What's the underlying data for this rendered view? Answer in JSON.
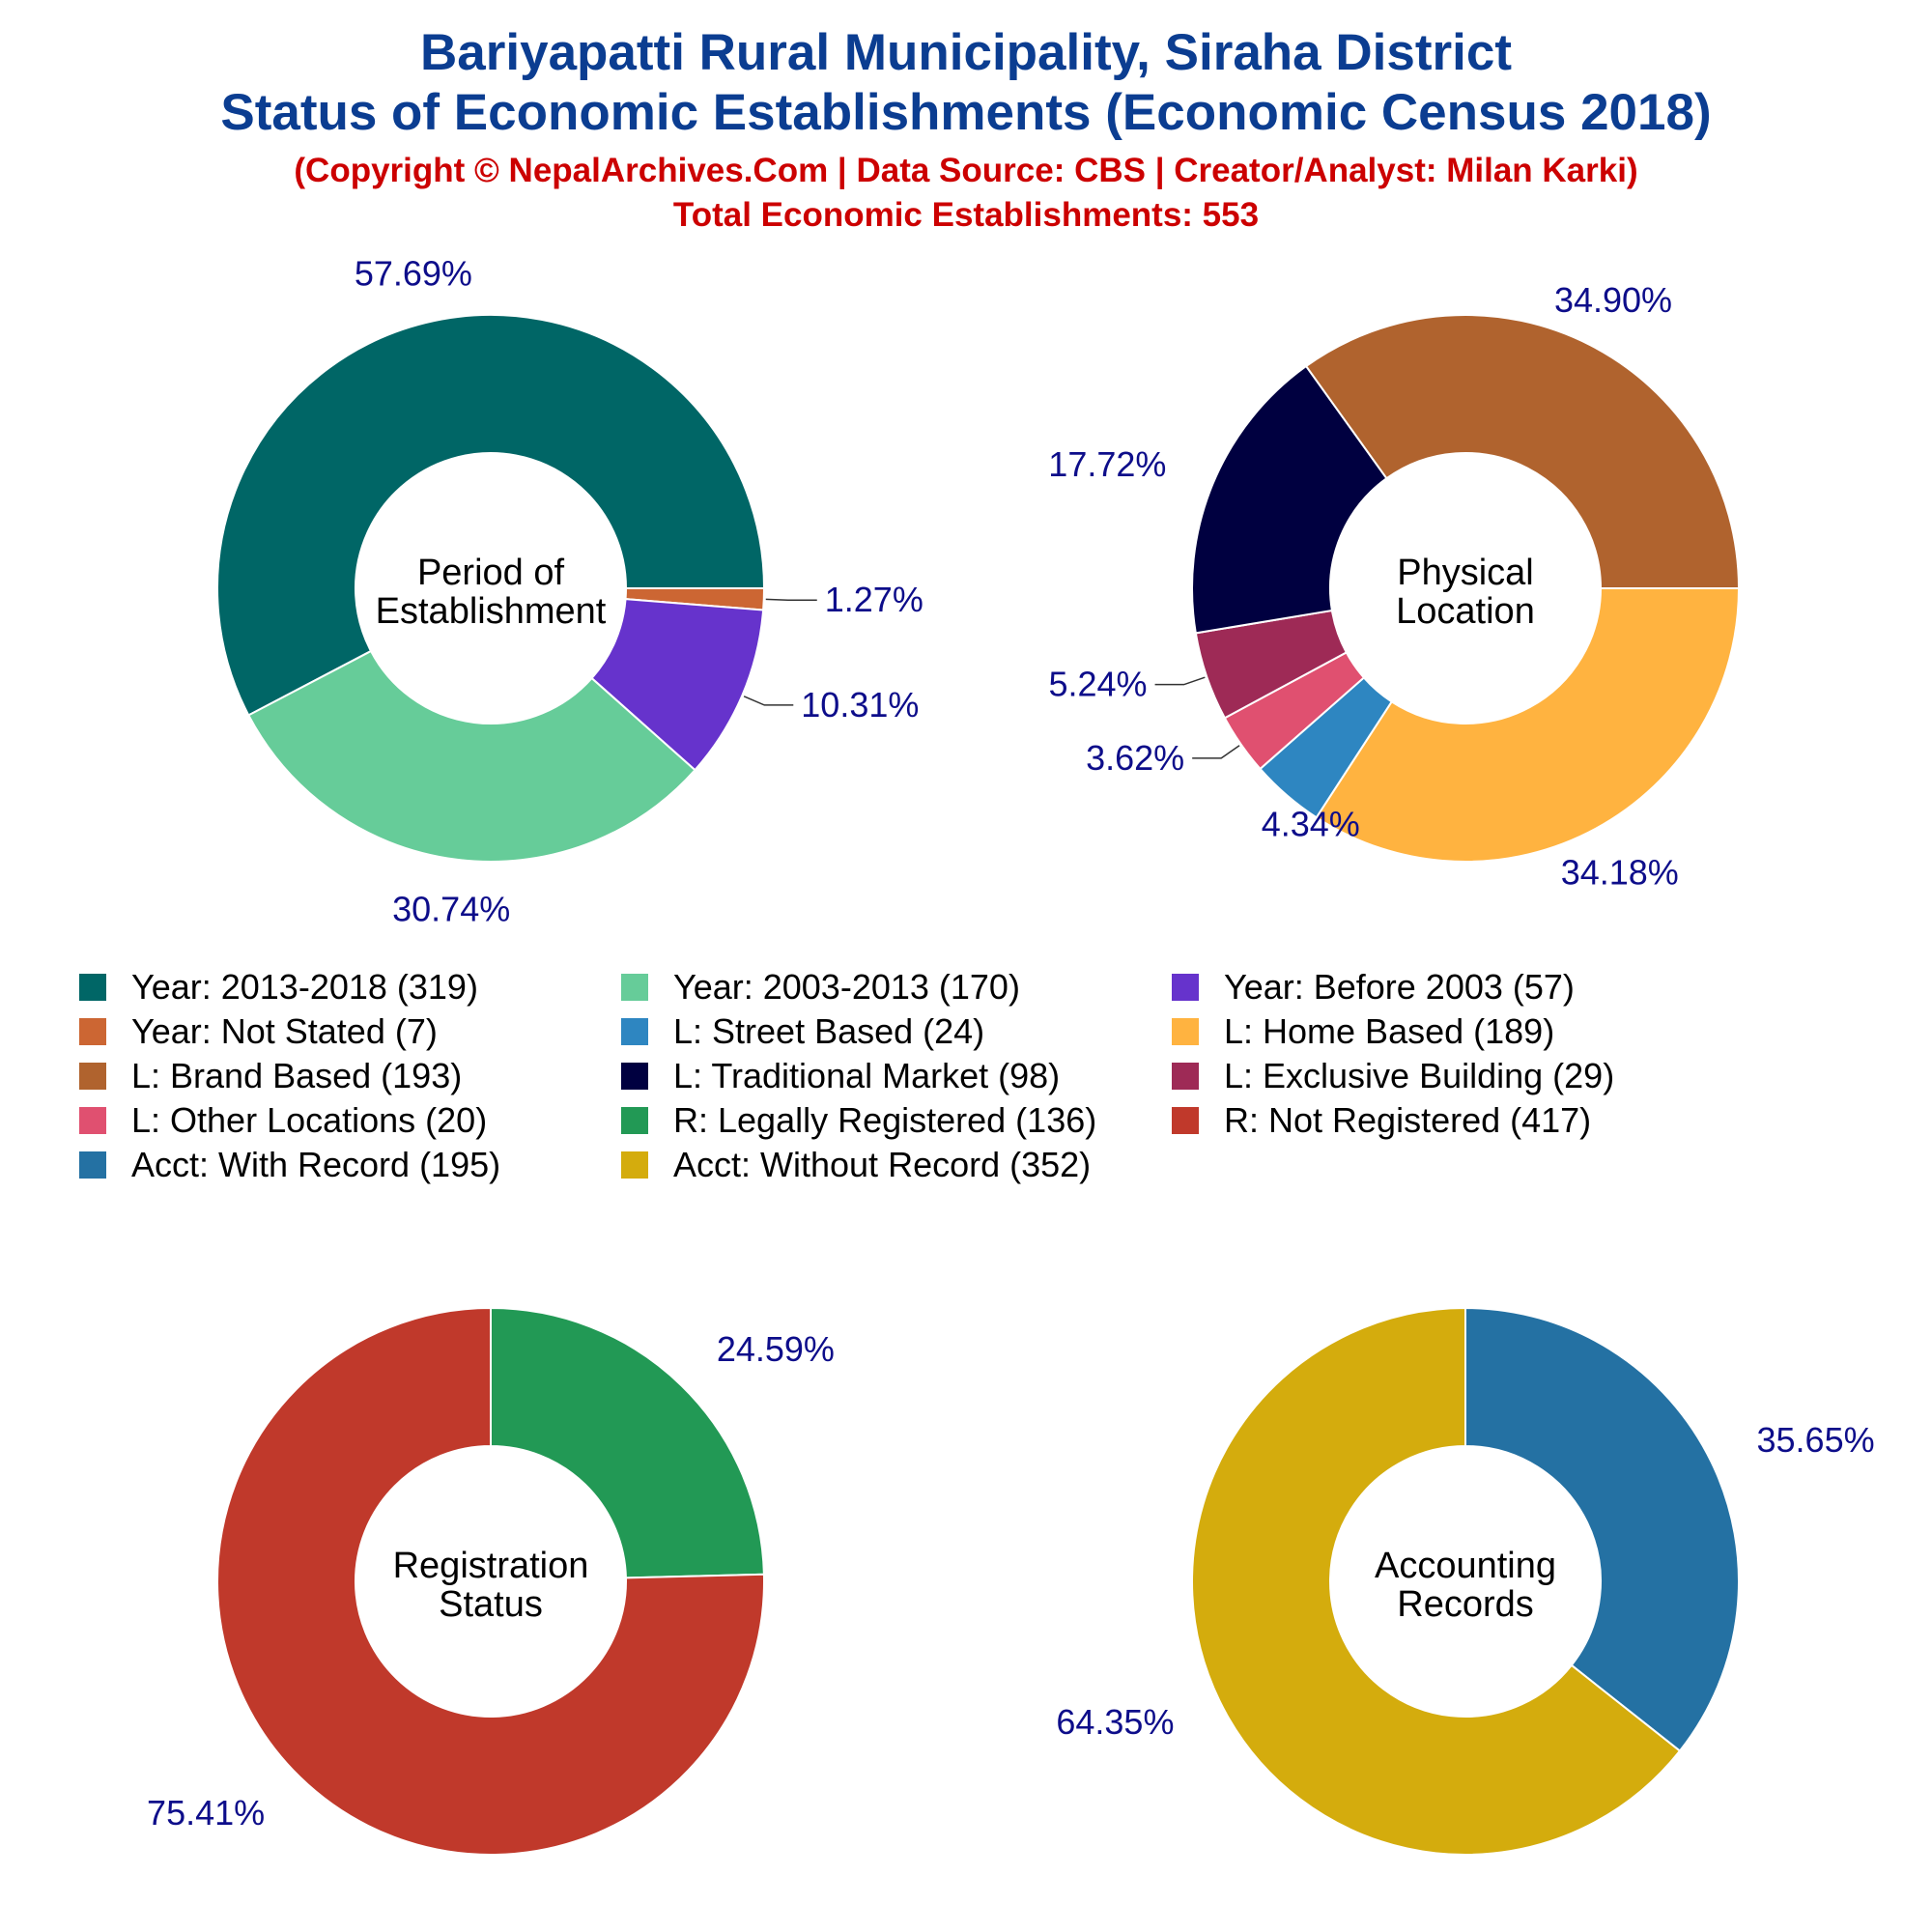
{
  "title_line1": "Bariyapatti Rural Municipality, Siraha District",
  "title_line2": "Status of Economic Establishments (Economic Census 2018)",
  "subtitle_line1": "(Copyright © NepalArchives.Com | Data Source: CBS | Creator/Analyst: Milan Karki)",
  "subtitle_line2": "Total Economic Establishments: 553",
  "chart_data": [
    {
      "type": "pie",
      "donut": true,
      "center_label": [
        "Period of",
        "Establishment"
      ],
      "slices": [
        {
          "label": "Year: 2013-2018 (319)",
          "value": 319,
          "percent_label": "57.69%",
          "color": "#006666"
        },
        {
          "label": "Year: Not Stated (7)",
          "value": 7,
          "percent_label": "1.27%",
          "color": "#cc6633"
        },
        {
          "label": "Year: Before 2003 (57)",
          "value": 57,
          "percent_label": "10.31%",
          "color": "#6633cc"
        },
        {
          "label": "Year: 2003-2013 (170)",
          "value": 170,
          "percent_label": "30.74%",
          "color": "#66cc99"
        }
      ]
    },
    {
      "type": "pie",
      "donut": true,
      "center_label": [
        "Physical",
        "Location"
      ],
      "slices": [
        {
          "label": "L: Home Based (189)",
          "value": 189,
          "percent_label": "34.18%",
          "color": "#ffb340"
        },
        {
          "label": "L: Street Based (24)",
          "value": 24,
          "percent_label": "4.34%",
          "color": "#2e86c1"
        },
        {
          "label": "L: Other Locations (20)",
          "value": 20,
          "percent_label": "3.62%",
          "color": "#e05070"
        },
        {
          "label": "L: Exclusive Building (29)",
          "value": 29,
          "percent_label": "5.24%",
          "color": "#9e2a56"
        },
        {
          "label": "L: Traditional Market (98)",
          "value": 98,
          "percent_label": "17.72%",
          "color": "#000040"
        },
        {
          "label": "L: Brand Based (193)",
          "value": 193,
          "percent_label": "34.90%",
          "color": "#b0632e"
        }
      ]
    },
    {
      "type": "pie",
      "donut": true,
      "center_label": [
        "Registration",
        "Status"
      ],
      "slices": [
        {
          "label": "R: Legally Registered (136)",
          "value": 136,
          "percent_label": "24.59%",
          "color": "#229955"
        },
        {
          "label": "R: Not Registered (417)",
          "value": 417,
          "percent_label": "75.41%",
          "color": "#c0392b"
        }
      ]
    },
    {
      "type": "pie",
      "donut": true,
      "center_label": [
        "Accounting",
        "Records"
      ],
      "slices": [
        {
          "label": "Acct: With Record (195)",
          "value": 195,
          "percent_label": "35.65%",
          "color": "#2471a3"
        },
        {
          "label": "Acct: Without Record (352)",
          "value": 352,
          "percent_label": "64.35%",
          "color": "#d4ac0d"
        }
      ]
    }
  ],
  "legend": [
    {
      "label": "Year: 2013-2018 (319)",
      "color": "#006666"
    },
    {
      "label": "Year: 2003-2013 (170)",
      "color": "#66cc99"
    },
    {
      "label": "Year: Before 2003 (57)",
      "color": "#6633cc"
    },
    {
      "label": "Year: Not Stated (7)",
      "color": "#cc6633"
    },
    {
      "label": "L: Street Based (24)",
      "color": "#2e86c1"
    },
    {
      "label": "L: Home Based (189)",
      "color": "#ffb340"
    },
    {
      "label": "L: Brand Based (193)",
      "color": "#b0632e"
    },
    {
      "label": "L: Traditional Market (98)",
      "color": "#000040"
    },
    {
      "label": "L: Exclusive Building (29)",
      "color": "#9e2a56"
    },
    {
      "label": "L: Other Locations (20)",
      "color": "#e05070"
    },
    {
      "label": "R: Legally Registered (136)",
      "color": "#229955"
    },
    {
      "label": "R: Not Registered (417)",
      "color": "#c0392b"
    },
    {
      "label": "Acct: With Record (195)",
      "color": "#2471a3"
    },
    {
      "label": "Acct: Without Record (352)",
      "color": "#d4ac0d"
    }
  ]
}
